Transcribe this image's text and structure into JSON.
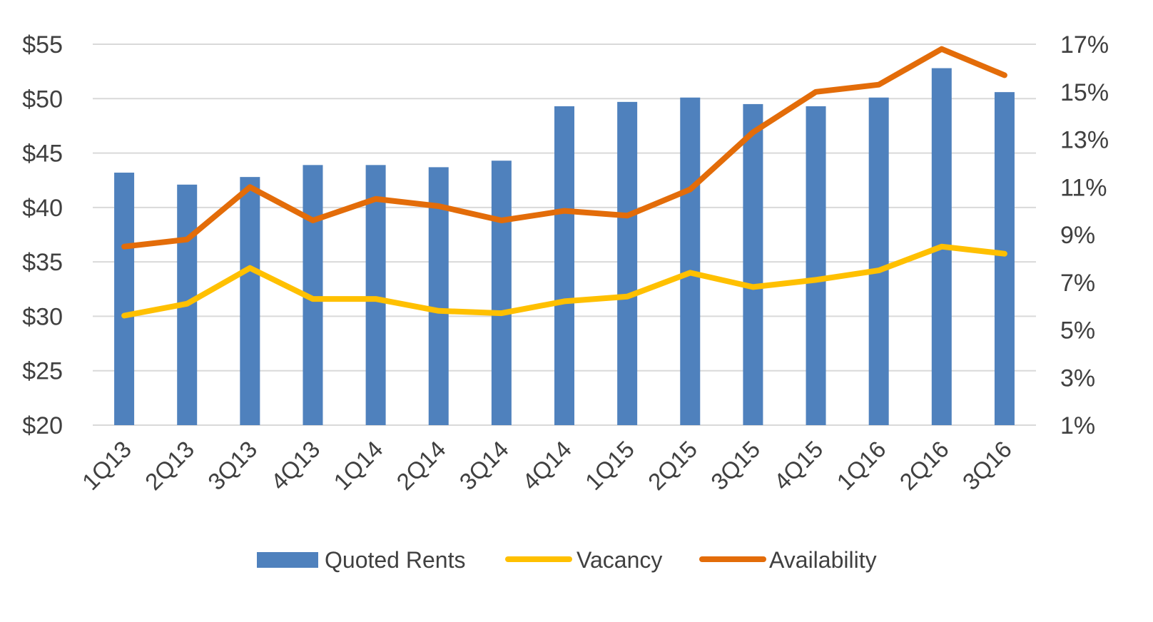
{
  "chart_data": {
    "type": "bar",
    "categories": [
      "1Q13",
      "2Q13",
      "3Q13",
      "4Q13",
      "1Q14",
      "2Q14",
      "3Q14",
      "4Q14",
      "1Q15",
      "2Q15",
      "3Q15",
      "4Q15",
      "1Q16",
      "2Q16",
      "3Q16"
    ],
    "series": [
      {
        "name": "Quoted Rents",
        "type": "bar",
        "axis": "left",
        "color": "#4f81bd",
        "values": [
          43.2,
          42.1,
          42.8,
          43.9,
          43.9,
          43.7,
          44.3,
          49.3,
          49.7,
          50.1,
          49.5,
          49.3,
          50.1,
          52.8,
          50.6
        ]
      },
      {
        "name": "Vacancy",
        "type": "line",
        "axis": "right",
        "color": "#ffc000",
        "values": [
          5.6,
          6.1,
          7.6,
          6.3,
          6.3,
          5.8,
          5.7,
          6.2,
          6.4,
          7.4,
          6.8,
          7.1,
          7.5,
          8.5,
          8.2
        ]
      },
      {
        "name": "Availability",
        "type": "line",
        "axis": "right",
        "color": "#e36c09",
        "values": [
          8.5,
          8.8,
          11.0,
          9.6,
          10.5,
          10.2,
          9.6,
          10.0,
          9.8,
          10.9,
          13.3,
          15.0,
          15.3,
          16.8,
          15.7
        ]
      }
    ],
    "left_axis": {
      "ylim": [
        20,
        55
      ],
      "ticks": [
        20,
        25,
        30,
        35,
        40,
        45,
        50,
        55
      ],
      "tick_labels": [
        "$20",
        "$25",
        "$30",
        "$35",
        "$40",
        "$45",
        "$50",
        "$55"
      ]
    },
    "right_axis": {
      "ylim": [
        1,
        17
      ],
      "ticks": [
        1,
        3,
        5,
        7,
        9,
        11,
        13,
        15,
        17
      ],
      "tick_labels": [
        "1%",
        "3%",
        "5%",
        "7%",
        "9%",
        "11%",
        "13%",
        "15%",
        "17%"
      ]
    },
    "title": "",
    "xlabel": "",
    "ylabel": "",
    "grid": true,
    "legend_position": "bottom"
  }
}
